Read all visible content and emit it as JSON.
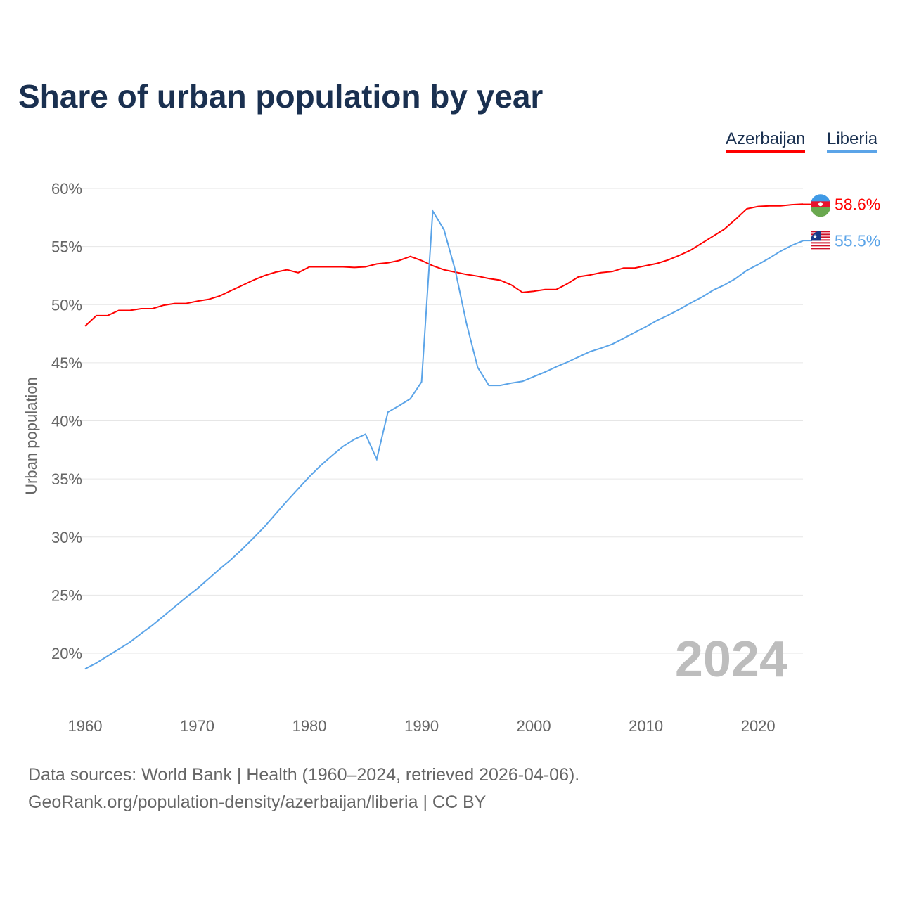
{
  "chart_data": {
    "type": "line",
    "title": "Share of urban population by year",
    "ylabel": "Urban population",
    "xlabel": "",
    "ylim": [
      16,
      61
    ],
    "xlim": [
      1960,
      2024
    ],
    "yticks": [
      "20%",
      "25%",
      "30%",
      "35%",
      "40%",
      "45%",
      "50%",
      "55%",
      "60%"
    ],
    "ytick_values": [
      20,
      25,
      30,
      35,
      40,
      45,
      50,
      55,
      60
    ],
    "xticks": [
      "1960",
      "1970",
      "1980",
      "1990",
      "2000",
      "2010",
      "2020"
    ],
    "xtick_values": [
      1960,
      1970,
      1980,
      1990,
      2000,
      2010,
      2020
    ],
    "grid": true,
    "legend_position": "top-right",
    "year_watermark": "2024",
    "x": [
      1960,
      1961,
      1962,
      1963,
      1964,
      1965,
      1966,
      1967,
      1968,
      1969,
      1970,
      1971,
      1972,
      1973,
      1974,
      1975,
      1976,
      1977,
      1978,
      1979,
      1980,
      1981,
      1982,
      1983,
      1984,
      1985,
      1986,
      1987,
      1988,
      1989,
      1990,
      1991,
      1992,
      1993,
      1994,
      1995,
      1996,
      1997,
      1998,
      1999,
      2000,
      2001,
      2002,
      2003,
      2004,
      2005,
      2006,
      2007,
      2008,
      2009,
      2010,
      2011,
      2012,
      2013,
      2014,
      2015,
      2016,
      2017,
      2018,
      2019,
      2020,
      2021,
      2022,
      2023,
      2024
    ],
    "series": [
      {
        "name": "Azerbaijan",
        "color": "#ff0000",
        "end_label": "58.6%",
        "values": [
          48.15,
          49.05,
          49.05,
          49.5,
          49.5,
          49.65,
          49.65,
          49.95,
          50.1,
          50.1,
          50.3,
          50.45,
          50.75,
          51.2,
          51.65,
          52.1,
          52.5,
          52.8,
          53.0,
          52.75,
          53.25,
          53.25,
          53.25,
          53.25,
          53.2,
          53.25,
          53.5,
          53.6,
          53.8,
          54.15,
          53.8,
          53.35,
          53.0,
          52.8,
          52.6,
          52.45,
          52.25,
          52.1,
          51.7,
          51.05,
          51.15,
          51.3,
          51.3,
          51.8,
          52.4,
          52.55,
          52.75,
          52.85,
          53.15,
          53.15,
          53.35,
          53.55,
          53.85,
          54.25,
          54.7,
          55.3,
          55.9,
          56.5,
          57.35,
          58.25,
          58.45,
          58.5,
          58.5,
          58.6,
          58.65
        ]
      },
      {
        "name": "Liberia",
        "color": "#5ba4e8",
        "end_label": "55.5%",
        "values": [
          18.65,
          19.15,
          19.75,
          20.35,
          20.95,
          21.7,
          22.4,
          23.2,
          24.0,
          24.8,
          25.55,
          26.4,
          27.25,
          28.05,
          28.95,
          29.9,
          30.9,
          32.0,
          33.1,
          34.15,
          35.2,
          36.15,
          37.0,
          37.8,
          38.4,
          38.85,
          36.7,
          40.75,
          41.3,
          41.9,
          43.35,
          58.05,
          56.45,
          52.95,
          48.4,
          44.6,
          43.05,
          43.05,
          43.25,
          43.4,
          43.8,
          44.2,
          44.65,
          45.05,
          45.5,
          45.95,
          46.25,
          46.6,
          47.1,
          47.6,
          48.1,
          48.65,
          49.1,
          49.6,
          50.15,
          50.65,
          51.25,
          51.7,
          52.25,
          52.95,
          53.45,
          54.0,
          54.6,
          55.1,
          55.5
        ]
      }
    ]
  },
  "footer": {
    "source": "Data sources: World Bank | Health (1960–2024, retrieved 2026-04-06).",
    "link": "GeoRank.org/population-density/azerbaijan/liberia | CC BY"
  }
}
